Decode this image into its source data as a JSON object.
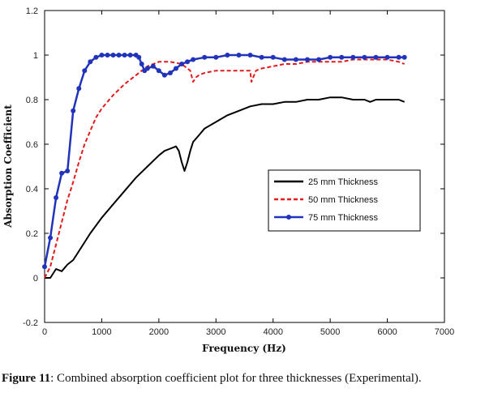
{
  "chart_data": {
    "type": "line",
    "xlabel": "Frequency (Hz)",
    "ylabel": "Absorption Coefficient",
    "xlim": [
      0,
      7000
    ],
    "ylim": [
      -0.2,
      1.2
    ],
    "xticks": [
      "0",
      "1000",
      "2000",
      "3000",
      "4000",
      "5000",
      "6000",
      "7000"
    ],
    "yticks": [
      "-0.2",
      "0",
      "0.2",
      "0.4",
      "0.6",
      "0.8",
      "1",
      "1.2"
    ],
    "grid": false,
    "legend_position": "center-right",
    "series": [
      {
        "name": "25 mm Thickness",
        "color": "#000000",
        "style": "solid",
        "x": [
          0,
          100,
          200,
          300,
          400,
          500,
          600,
          800,
          1000,
          1200,
          1400,
          1600,
          1800,
          2000,
          2100,
          2200,
          2300,
          2350,
          2400,
          2450,
          2500,
          2550,
          2600,
          2700,
          2800,
          3000,
          3200,
          3400,
          3600,
          3800,
          4000,
          4200,
          4400,
          4600,
          4800,
          5000,
          5200,
          5400,
          5600,
          5700,
          5800,
          6000,
          6200,
          6300
        ],
        "y": [
          0.0,
          0.0,
          0.04,
          0.03,
          0.06,
          0.08,
          0.12,
          0.2,
          0.27,
          0.33,
          0.39,
          0.45,
          0.5,
          0.55,
          0.57,
          0.58,
          0.59,
          0.57,
          0.52,
          0.48,
          0.52,
          0.57,
          0.61,
          0.64,
          0.67,
          0.7,
          0.73,
          0.75,
          0.77,
          0.78,
          0.78,
          0.79,
          0.79,
          0.8,
          0.8,
          0.81,
          0.81,
          0.8,
          0.8,
          0.79,
          0.8,
          0.8,
          0.8,
          0.79
        ]
      },
      {
        "name": "50 mm Thickness",
        "color": "#e31a1c",
        "style": "dashed",
        "x": [
          0,
          100,
          200,
          300,
          400,
          500,
          600,
          700,
          800,
          900,
          1000,
          1200,
          1400,
          1600,
          1800,
          2000,
          2200,
          2400,
          2550,
          2600,
          2650,
          2700,
          2800,
          3000,
          3200,
          3400,
          3600,
          3620,
          3700,
          3800,
          4000,
          4200,
          4400,
          4600,
          4800,
          5000,
          5200,
          5400,
          5600,
          5800,
          6000,
          6200,
          6300
        ],
        "y": [
          0.0,
          0.05,
          0.15,
          0.25,
          0.35,
          0.43,
          0.52,
          0.6,
          0.66,
          0.72,
          0.76,
          0.82,
          0.87,
          0.91,
          0.95,
          0.97,
          0.97,
          0.96,
          0.93,
          0.88,
          0.9,
          0.91,
          0.92,
          0.93,
          0.93,
          0.93,
          0.93,
          0.88,
          0.93,
          0.94,
          0.95,
          0.96,
          0.96,
          0.97,
          0.97,
          0.97,
          0.97,
          0.98,
          0.98,
          0.98,
          0.98,
          0.97,
          0.96
        ]
      },
      {
        "name": "75 mm Thickness",
        "color": "#2233bb",
        "style": "solid-markers",
        "x": [
          0,
          100,
          200,
          300,
          400,
          500,
          600,
          700,
          800,
          900,
          1000,
          1100,
          1200,
          1300,
          1400,
          1500,
          1600,
          1650,
          1700,
          1750,
          1800,
          1900,
          2000,
          2100,
          2200,
          2300,
          2400,
          2500,
          2600,
          2800,
          3000,
          3200,
          3400,
          3600,
          3800,
          4000,
          4200,
          4400,
          4600,
          4800,
          5000,
          5200,
          5400,
          5600,
          5800,
          6000,
          6200,
          6300
        ],
        "y": [
          0.05,
          0.18,
          0.36,
          0.47,
          0.48,
          0.75,
          0.85,
          0.93,
          0.97,
          0.99,
          1.0,
          1.0,
          1.0,
          1.0,
          1.0,
          1.0,
          1.0,
          0.99,
          0.96,
          0.93,
          0.94,
          0.95,
          0.93,
          0.91,
          0.92,
          0.94,
          0.96,
          0.97,
          0.98,
          0.99,
          0.99,
          1.0,
          1.0,
          1.0,
          0.99,
          0.99,
          0.98,
          0.98,
          0.98,
          0.98,
          0.99,
          0.99,
          0.99,
          0.99,
          0.99,
          0.99,
          0.99,
          0.99
        ]
      }
    ]
  },
  "caption": {
    "label": "Figure 11",
    "text": ": Combined absorption coefficient plot for three thicknesses (Experimental)."
  }
}
